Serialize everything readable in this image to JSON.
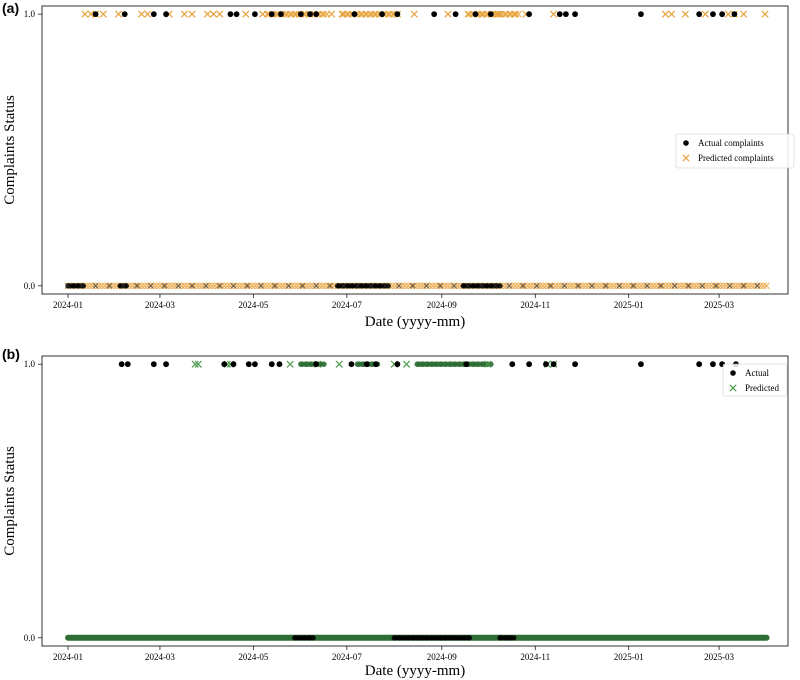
{
  "panels": [
    {
      "label": "(a)"
    },
    {
      "label": "(b)"
    }
  ],
  "chart_data": [
    {
      "type": "scatter",
      "xlabel": "Date (yyyy-mm)",
      "ylabel": "Complaints Status",
      "x_range": [
        "2023-12-15",
        "2025-04-15"
      ],
      "ylim": [
        -0.03,
        1.03
      ],
      "x_ticks": [
        "2024-01",
        "2024-03",
        "2024-05",
        "2024-07",
        "2024-09",
        "2024-11",
        "2025-01",
        "2025-03"
      ],
      "y_ticks": [
        "0.0",
        "1.0"
      ],
      "legend_position": "center-right",
      "series": [
        {
          "name": "Actual complaints",
          "marker": "circle",
          "color": "#000000",
          "points_at_1": [
            "2024-01-19",
            "2024-02-07",
            "2024-02-26",
            "2024-03-05",
            "2024-04-16",
            "2024-04-20",
            "2024-05-02",
            "2024-05-13",
            "2024-05-19",
            "2024-06-01",
            "2024-06-07",
            "2024-06-11",
            "2024-07-06",
            "2024-07-24",
            "2024-08-03",
            "2024-08-27",
            "2024-09-10",
            "2024-09-23",
            "2024-10-03",
            "2024-10-28",
            "2024-11-17",
            "2024-11-21",
            "2024-11-27",
            "2025-01-09",
            "2025-02-16",
            "2025-02-25",
            "2025-03-03",
            "2025-03-11"
          ],
          "dense_ranges_at_0": [
            [
              "2024-01-01",
              "2024-01-12"
            ],
            [
              "2024-02-04",
              "2024-02-09"
            ],
            [
              "2024-06-25",
              "2024-07-28"
            ],
            [
              "2024-09-15",
              "2024-10-10"
            ]
          ]
        },
        {
          "name": "Predicted complaints",
          "marker": "x",
          "color": "#e8a33d",
          "points_at_1": [
            "2024-01-12",
            "2024-01-16",
            "2024-01-19",
            "2024-01-24",
            "2024-02-03",
            "2024-02-18",
            "2024-02-22",
            "2024-03-07",
            "2024-03-17",
            "2024-03-22",
            "2024-04-01",
            "2024-04-05",
            "2024-04-09",
            "2024-04-26",
            "2024-05-07",
            "2024-06-21",
            "2024-06-28",
            "2024-08-03",
            "2024-08-14",
            "2024-09-05",
            "2024-09-27",
            "2024-10-08",
            "2024-10-19",
            "2024-10-26",
            "2024-11-13",
            "2025-01-25",
            "2025-01-29",
            "2025-02-07",
            "2025-02-20",
            "2025-03-07",
            "2025-03-11",
            "2025-03-17",
            "2025-03-31"
          ],
          "dense_ranges_at_1": [
            [
              "2024-05-10",
              "2024-06-18"
            ],
            [
              "2024-06-28",
              "2024-08-03"
            ],
            [
              "2024-09-18",
              "2024-10-22"
            ]
          ],
          "dense_ranges_at_0": [
            [
              "2024-01-01",
              "2025-04-01"
            ]
          ]
        }
      ]
    },
    {
      "type": "scatter",
      "xlabel": "Date (yyyy-mm)",
      "ylabel": "Complaints Status",
      "x_range": [
        "2023-12-15",
        "2025-04-15"
      ],
      "ylim": [
        -0.03,
        1.03
      ],
      "x_ticks": [
        "2024-01",
        "2024-03",
        "2024-05",
        "2024-07",
        "2024-09",
        "2024-11",
        "2025-01",
        "2025-03"
      ],
      "y_ticks": [
        "0.0",
        "1.0"
      ],
      "legend_position": "top-right",
      "series": [
        {
          "name": "Actual",
          "marker": "circle",
          "color": "#000000",
          "points_at_1": [
            "2024-02-05",
            "2024-02-09",
            "2024-02-26",
            "2024-03-05",
            "2024-04-12",
            "2024-04-18",
            "2024-04-28",
            "2024-05-02",
            "2024-05-13",
            "2024-05-18",
            "2024-06-11",
            "2024-07-04",
            "2024-07-14",
            "2024-07-20",
            "2024-08-03",
            "2024-09-17",
            "2024-10-17",
            "2024-10-28",
            "2024-11-08",
            "2024-11-13",
            "2024-11-27",
            "2025-01-09",
            "2025-02-16",
            "2025-02-25",
            "2025-03-03",
            "2025-03-12"
          ],
          "dense_ranges_at_0": [
            [
              "2024-05-28",
              "2024-06-10"
            ],
            [
              "2024-08-01",
              "2024-09-20"
            ],
            [
              "2024-10-09",
              "2024-10-18"
            ]
          ]
        },
        {
          "name": "Predicted",
          "marker": "x",
          "color": "#4c9a4c",
          "points_at_1": [
            "2024-03-24",
            "2024-03-26",
            "2024-04-14",
            "2024-04-16",
            "2024-05-25",
            "2024-06-12",
            "2024-06-26",
            "2024-08-01",
            "2024-08-09",
            "2024-10-01",
            "2024-11-09",
            "2024-11-13"
          ],
          "dense_ranges_at_1": [
            [
              "2024-06-01",
              "2024-06-17"
            ],
            [
              "2024-08-16",
              "2024-10-03"
            ],
            [
              "2024-07-08",
              "2024-07-22"
            ]
          ],
          "dense_ranges_at_0": [
            [
              "2024-01-01",
              "2025-04-01"
            ]
          ],
          "dense_color": "#2f6e34"
        }
      ]
    }
  ]
}
